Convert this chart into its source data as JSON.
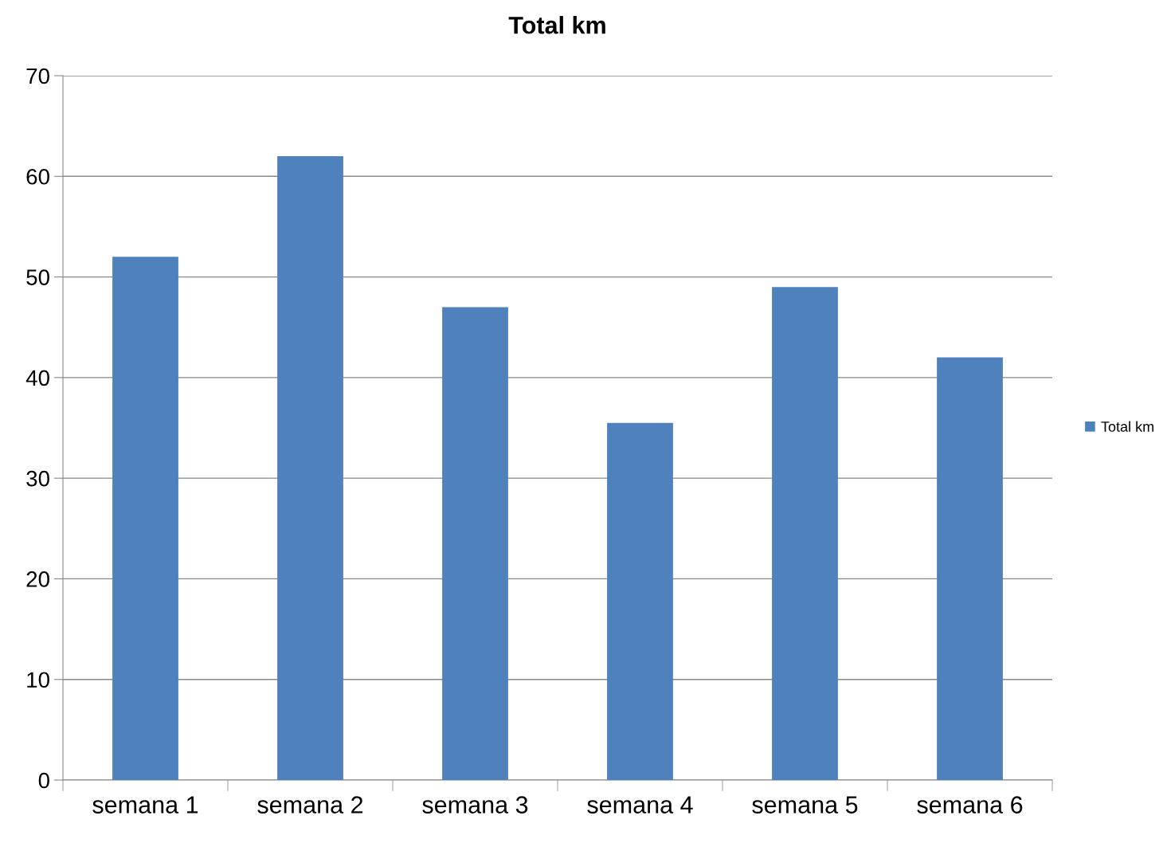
{
  "chart_data": {
    "type": "bar",
    "title": "Total km",
    "categories": [
      "semana 1",
      "semana 2",
      "semana 3",
      "semana 4",
      "semana 5",
      "semana 6"
    ],
    "series": [
      {
        "name": "Total km",
        "color": "#4f81bd",
        "values": [
          52,
          62,
          47,
          35.5,
          49,
          42
        ]
      }
    ],
    "ylim": [
      0,
      70
    ],
    "yticks": [
      0,
      10,
      20,
      30,
      40,
      50,
      60,
      70
    ],
    "grid": "y",
    "legend": "right"
  }
}
